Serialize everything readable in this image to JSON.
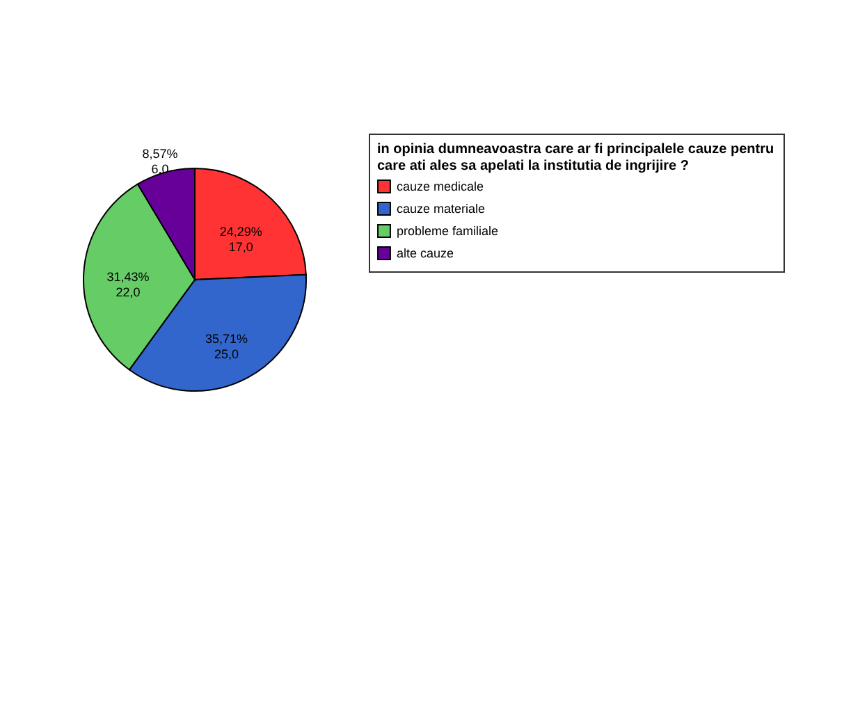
{
  "chart_data": {
    "type": "pie",
    "legend_title": "in opinia dumneavoastra care ar fi principalele cauze pentru care ati ales sa apelati la institutia de ingrijire ?",
    "categories": [
      "cauze medicale",
      "cauze materiale",
      "probleme familiale",
      "alte cauze"
    ],
    "values": [
      17,
      25,
      22,
      6
    ],
    "colors": [
      "#ff3333",
      "#3366cc",
      "#66cc66",
      "#660099"
    ],
    "value_labels": [
      "24,29%\n17,0",
      "35,71%\n25,0",
      "31,43%\n22,0",
      "8,57%\n6,0"
    ],
    "legend": "right"
  }
}
